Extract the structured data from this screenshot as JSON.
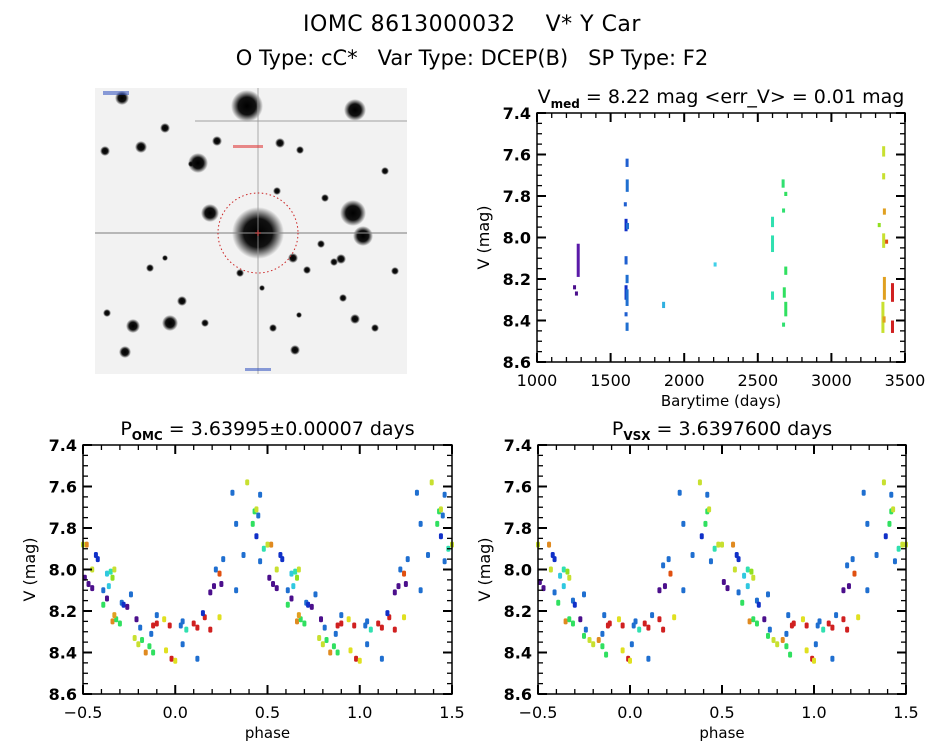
{
  "header": {
    "title_line1": "IOMC 8613000032    V* Y Car",
    "title_line2": "O Type: cC*   Var Type: DCEP(B)   SP Type: F2"
  },
  "thumbnail": {
    "description": "Sky image cutout centered on target with dotted red aperture circle",
    "aperture_color": "#cc2222"
  },
  "chart_data": [
    {
      "id": "lightcurve",
      "type": "scatter",
      "title_main": "V",
      "title_sub": "med",
      "title_rest": " = 8.22 mag <err_V> = 0.01 mag",
      "xlabel": "Barytime (days)",
      "ylabel": "V (mag)",
      "xlim": [
        1000,
        3500
      ],
      "ylim": [
        7.4,
        8.6
      ],
      "y_inverted": true,
      "xticks": [
        1000,
        1500,
        2000,
        2500,
        3000,
        3500
      ],
      "xtick_labels": [
        "1000",
        "1500",
        "2000",
        "2500",
        "3000",
        "3500"
      ],
      "yticks": [
        7.4,
        7.6,
        7.8,
        8.0,
        8.2,
        8.4,
        8.6
      ],
      "ytick_labels": [
        "7.4",
        "7.6",
        "7.8",
        "8.0",
        "8.2",
        "8.4",
        "8.6"
      ],
      "grid": false,
      "segments": [
        {
          "x": 1280,
          "y0": 8.03,
          "y1": 8.19,
          "color": "#5a1aa8"
        },
        {
          "x": 1255,
          "y0": 8.23,
          "y1": 8.25,
          "color": "#4b0f8c"
        },
        {
          "x": 1268,
          "y0": 8.26,
          "y1": 8.28,
          "color": "#4b0f8c"
        },
        {
          "x": 1612,
          "y0": 7.62,
          "y1": 7.66,
          "color": "#1f5fd0"
        },
        {
          "x": 1613,
          "y0": 7.72,
          "y1": 7.78,
          "color": "#1f6fd0"
        },
        {
          "x": 1600,
          "y0": 7.83,
          "y1": 7.85,
          "color": "#1f5fd0"
        },
        {
          "x": 1605,
          "y0": 7.91,
          "y1": 7.97,
          "color": "#1030c8"
        },
        {
          "x": 1615,
          "y0": 7.93,
          "y1": 7.96,
          "color": "#1f6fd0"
        },
        {
          "x": 1605,
          "y0": 8.09,
          "y1": 8.13,
          "color": "#1f5fd0"
        },
        {
          "x": 1612,
          "y0": 8.18,
          "y1": 8.22,
          "color": "#1f6fd0"
        },
        {
          "x": 1605,
          "y0": 8.23,
          "y1": 8.3,
          "color": "#1030c8"
        },
        {
          "x": 1612,
          "y0": 8.25,
          "y1": 8.33,
          "color": "#1f6fd0"
        },
        {
          "x": 1605,
          "y0": 8.36,
          "y1": 8.38,
          "color": "#1f5fd0"
        },
        {
          "x": 1612,
          "y0": 8.41,
          "y1": 8.45,
          "color": "#1f6fd0"
        },
        {
          "x": 1860,
          "y0": 8.31,
          "y1": 8.34,
          "color": "#30b0e0"
        },
        {
          "x": 2210,
          "y0": 8.12,
          "y1": 8.14,
          "color": "#40d0e8"
        },
        {
          "x": 2600,
          "y0": 7.9,
          "y1": 7.95,
          "color": "#30e0b0"
        },
        {
          "x": 2600,
          "y0": 7.99,
          "y1": 8.07,
          "color": "#30e0b0"
        },
        {
          "x": 2600,
          "y0": 8.26,
          "y1": 8.3,
          "color": "#30e0b0"
        },
        {
          "x": 2672,
          "y0": 7.72,
          "y1": 7.76,
          "color": "#30e070"
        },
        {
          "x": 2690,
          "y0": 7.78,
          "y1": 7.8,
          "color": "#30e060"
        },
        {
          "x": 2675,
          "y0": 7.86,
          "y1": 7.88,
          "color": "#30e070"
        },
        {
          "x": 2690,
          "y0": 8.14,
          "y1": 8.18,
          "color": "#30e060"
        },
        {
          "x": 2680,
          "y0": 8.24,
          "y1": 8.29,
          "color": "#30e060"
        },
        {
          "x": 2690,
          "y0": 8.31,
          "y1": 8.38,
          "color": "#30e060"
        },
        {
          "x": 2675,
          "y0": 8.41,
          "y1": 8.43,
          "color": "#30e070"
        },
        {
          "x": 3355,
          "y0": 7.56,
          "y1": 7.61,
          "color": "#c8e030"
        },
        {
          "x": 3355,
          "y0": 7.69,
          "y1": 7.72,
          "color": "#c8e030"
        },
        {
          "x": 3360,
          "y0": 7.86,
          "y1": 7.89,
          "color": "#e0a020"
        },
        {
          "x": 3325,
          "y0": 7.93,
          "y1": 7.95,
          "color": "#90e020"
        },
        {
          "x": 3355,
          "y0": 7.98,
          "y1": 8.05,
          "color": "#c8e030"
        },
        {
          "x": 3375,
          "y0": 8.01,
          "y1": 8.03,
          "color": "#e05010"
        },
        {
          "x": 3360,
          "y0": 8.19,
          "y1": 8.3,
          "color": "#e0a020"
        },
        {
          "x": 3415,
          "y0": 8.22,
          "y1": 8.31,
          "color": "#d02020"
        },
        {
          "x": 3350,
          "y0": 8.31,
          "y1": 8.46,
          "color": "#c8e030"
        },
        {
          "x": 3358,
          "y0": 8.38,
          "y1": 8.41,
          "color": "#e0a020"
        },
        {
          "x": 3415,
          "y0": 8.4,
          "y1": 8.46,
          "color": "#d02020"
        }
      ]
    },
    {
      "id": "phase_omc",
      "type": "scatter",
      "title_main": "P",
      "title_sub": "OMC",
      "title_rest": " = 3.63995±0.00007 days",
      "xlabel": "phase",
      "ylabel": "V (mag)",
      "xlim": [
        -0.5,
        1.5
      ],
      "ylim": [
        7.4,
        8.6
      ],
      "y_inverted": true,
      "xticks": [
        -0.5,
        0.0,
        0.5,
        1.0,
        1.5
      ],
      "xtick_labels": [
        "−0.5",
        "0.0",
        "0.5",
        "1.0",
        "1.5"
      ],
      "yticks": [
        7.4,
        7.6,
        7.8,
        8.0,
        8.2,
        8.4,
        8.6
      ],
      "ytick_labels": [
        "7.4",
        "7.6",
        "7.8",
        "8.0",
        "8.2",
        "8.4",
        "8.6"
      ],
      "grid": false,
      "period_repeat": 1.0,
      "points": [
        [
          -0.48,
          7.88,
          "#e08a20"
        ],
        [
          -0.43,
          7.93,
          "#1030c8"
        ],
        [
          -0.42,
          7.95,
          "#1030c8"
        ],
        [
          -0.45,
          8.0,
          "#c8e030"
        ],
        [
          -0.49,
          8.04,
          "#4b0f8c"
        ],
        [
          -0.47,
          8.07,
          "#4b0f8c"
        ],
        [
          -0.45,
          8.09,
          "#4b0f8c"
        ],
        [
          -0.37,
          8.02,
          "#30c8e0"
        ],
        [
          -0.35,
          8.01,
          "#30e0b0"
        ],
        [
          -0.33,
          8.0,
          "#c8e030"
        ],
        [
          -0.34,
          8.04,
          "#90e020"
        ],
        [
          -0.36,
          8.08,
          "#30c8e0"
        ],
        [
          -0.39,
          8.1,
          "#1f6fd0"
        ],
        [
          -0.37,
          8.14,
          "#4b0f8c"
        ],
        [
          -0.39,
          8.17,
          "#30e060"
        ],
        [
          -0.29,
          8.16,
          "#1f6fd0"
        ],
        [
          -0.28,
          8.17,
          "#1030c8"
        ],
        [
          -0.26,
          8.18,
          "#4b0f8c"
        ],
        [
          -0.24,
          8.12,
          "#1f6fd0"
        ],
        [
          -0.34,
          8.25,
          "#e08a20"
        ],
        [
          -0.32,
          8.24,
          "#30e060"
        ],
        [
          -0.3,
          8.26,
          "#30e060"
        ],
        [
          -0.33,
          8.22,
          "#e0a020"
        ],
        [
          -0.21,
          8.24,
          "#4b0f8c"
        ],
        [
          -0.19,
          8.28,
          "#1f6fd0"
        ],
        [
          -0.22,
          8.33,
          "#c8e030"
        ],
        [
          -0.2,
          8.36,
          "#c8e030"
        ],
        [
          -0.18,
          8.34,
          "#30e060"
        ],
        [
          -0.16,
          8.4,
          "#e08a20"
        ],
        [
          -0.14,
          8.37,
          "#30e060"
        ],
        [
          -0.12,
          8.4,
          "#30e060"
        ],
        [
          -0.13,
          8.31,
          "#1f6fd0"
        ],
        [
          -0.12,
          8.27,
          "#d02020"
        ],
        [
          -0.1,
          8.26,
          "#d02020"
        ],
        [
          -0.1,
          8.22,
          "#1f6fd0"
        ],
        [
          -0.06,
          8.24,
          "#e0e020"
        ],
        [
          -0.03,
          8.27,
          "#d02020"
        ],
        [
          -0.05,
          8.39,
          "#e0e020"
        ],
        [
          -0.02,
          8.43,
          "#d02020"
        ],
        [
          0.0,
          8.44,
          "#e0e020"
        ],
        [
          0.03,
          8.27,
          "#1f6fd0"
        ],
        [
          0.04,
          8.25,
          "#1f6fd0"
        ],
        [
          0.06,
          8.29,
          "#30e0b0"
        ],
        [
          0.04,
          8.36,
          "#1f6fd0"
        ],
        [
          0.1,
          8.26,
          "#d02020"
        ],
        [
          0.12,
          8.28,
          "#d02020"
        ],
        [
          0.16,
          8.23,
          "#d02020"
        ],
        [
          0.19,
          8.29,
          "#d02020"
        ],
        [
          0.12,
          8.43,
          "#1f6fd0"
        ],
        [
          0.15,
          8.21,
          "#1030c8"
        ],
        [
          0.24,
          8.23,
          "#e0e020"
        ],
        [
          0.19,
          8.11,
          "#4b0f8c"
        ],
        [
          0.21,
          8.08,
          "#4b0f8c"
        ],
        [
          0.22,
          8.0,
          "#1f6fd0"
        ],
        [
          0.24,
          8.02,
          "#e05010"
        ],
        [
          0.25,
          8.07,
          "#4b0f8c"
        ],
        [
          0.26,
          7.95,
          "#1f6fd0"
        ],
        [
          0.33,
          8.1,
          "#1f6fd0"
        ],
        [
          0.31,
          7.63,
          "#1f6fd0"
        ],
        [
          0.33,
          7.78,
          "#1f6fd0"
        ],
        [
          0.37,
          7.93,
          "#1f6fd0"
        ],
        [
          0.39,
          7.58,
          "#c8e030"
        ],
        [
          0.46,
          7.64,
          "#1f6fd0"
        ],
        [
          0.43,
          7.72,
          "#30e060"
        ],
        [
          0.44,
          7.71,
          "#c8e030"
        ],
        [
          0.42,
          7.78,
          "#30e060"
        ],
        [
          0.45,
          7.74,
          "#1f6fd0"
        ],
        [
          0.44,
          7.84,
          "#1030c8"
        ],
        [
          0.48,
          7.9,
          "#30e0b0"
        ],
        [
          0.5,
          7.88,
          "#c8e030"
        ],
        [
          0.46,
          7.96,
          "#1f6fd0"
        ]
      ]
    },
    {
      "id": "phase_vsx",
      "type": "scatter",
      "title_main": "P",
      "title_sub": "VSX",
      "title_rest": " = 3.6397600 days",
      "xlabel": "phase",
      "ylabel": "V (mag)",
      "xlim": [
        -0.5,
        1.5
      ],
      "ylim": [
        7.4,
        8.6
      ],
      "y_inverted": true,
      "xticks": [
        -0.5,
        0.0,
        0.5,
        1.0,
        1.5
      ],
      "xtick_labels": [
        "−0.5",
        "0.0",
        "0.5",
        "1.0",
        "1.5"
      ],
      "yticks": [
        7.4,
        7.6,
        7.8,
        8.0,
        8.2,
        8.4,
        8.6
      ],
      "ytick_labels": [
        "7.4",
        "7.6",
        "7.8",
        "8.0",
        "8.2",
        "8.4",
        "8.6"
      ],
      "grid": false,
      "period_repeat": 1.0,
      "points": [
        [
          -0.5,
          7.88,
          "#c8e030"
        ],
        [
          -0.44,
          7.88,
          "#e08a20"
        ],
        [
          -0.42,
          7.93,
          "#1030c8"
        ],
        [
          -0.41,
          7.95,
          "#1030c8"
        ],
        [
          -0.43,
          8.0,
          "#c8e030"
        ],
        [
          -0.49,
          8.06,
          "#4b0f8c"
        ],
        [
          -0.47,
          8.09,
          "#4b0f8c"
        ],
        [
          -0.36,
          8.0,
          "#30e0b0"
        ],
        [
          -0.34,
          8.01,
          "#90e020"
        ],
        [
          -0.33,
          8.04,
          "#c8e030"
        ],
        [
          -0.38,
          8.03,
          "#30c8e0"
        ],
        [
          -0.36,
          8.08,
          "#30c8e0"
        ],
        [
          -0.41,
          8.11,
          "#1f6fd0"
        ],
        [
          -0.39,
          8.16,
          "#30e060"
        ],
        [
          -0.31,
          8.15,
          "#1f6fd0"
        ],
        [
          -0.3,
          8.17,
          "#1030c8"
        ],
        [
          -0.25,
          8.12,
          "#1f6fd0"
        ],
        [
          -0.35,
          8.25,
          "#e08a20"
        ],
        [
          -0.33,
          8.24,
          "#30e060"
        ],
        [
          -0.31,
          8.26,
          "#30e060"
        ],
        [
          -0.27,
          8.24,
          "#4b0f8c"
        ],
        [
          -0.24,
          8.29,
          "#1f6fd0"
        ],
        [
          -0.25,
          8.32,
          "#30e060"
        ],
        [
          -0.22,
          8.34,
          "#c8e030"
        ],
        [
          -0.2,
          8.36,
          "#c8e030"
        ],
        [
          -0.17,
          8.34,
          "#e08a20"
        ],
        [
          -0.15,
          8.37,
          "#30e060"
        ],
        [
          -0.13,
          8.41,
          "#30e060"
        ],
        [
          -0.15,
          8.31,
          "#1f6fd0"
        ],
        [
          -0.12,
          8.27,
          "#d02020"
        ],
        [
          -0.11,
          8.26,
          "#d02020"
        ],
        [
          -0.14,
          8.22,
          "#1f6fd0"
        ],
        [
          -0.06,
          8.24,
          "#e0e020"
        ],
        [
          -0.04,
          8.27,
          "#d02020"
        ],
        [
          -0.04,
          8.39,
          "#e0e020"
        ],
        [
          -0.01,
          8.43,
          "#d02020"
        ],
        [
          0.0,
          8.44,
          "#e0e020"
        ],
        [
          0.02,
          8.27,
          "#1f6fd0"
        ],
        [
          0.03,
          8.25,
          "#1f6fd0"
        ],
        [
          0.05,
          8.29,
          "#30e0b0"
        ],
        [
          0.01,
          8.36,
          "#1f6fd0"
        ],
        [
          0.08,
          8.26,
          "#d02020"
        ],
        [
          0.1,
          8.28,
          "#d02020"
        ],
        [
          0.12,
          8.22,
          "#1f6fd0"
        ],
        [
          0.16,
          8.24,
          "#d02020"
        ],
        [
          0.18,
          8.29,
          "#d02020"
        ],
        [
          0.1,
          8.43,
          "#1f6fd0"
        ],
        [
          0.24,
          8.23,
          "#e0e020"
        ],
        [
          0.16,
          8.1,
          "#4b0f8c"
        ],
        [
          0.19,
          8.08,
          "#4b0f8c"
        ],
        [
          0.18,
          7.98,
          "#1f6fd0"
        ],
        [
          0.22,
          8.02,
          "#e05010"
        ],
        [
          0.21,
          7.95,
          "#1f6fd0"
        ],
        [
          0.29,
          8.1,
          "#1f6fd0"
        ],
        [
          0.27,
          7.63,
          "#1f6fd0"
        ],
        [
          0.29,
          7.78,
          "#1f6fd0"
        ],
        [
          0.34,
          7.93,
          "#1f6fd0"
        ],
        [
          0.38,
          7.58,
          "#c8e030"
        ],
        [
          0.42,
          7.64,
          "#1f6fd0"
        ],
        [
          0.42,
          7.72,
          "#30e060"
        ],
        [
          0.43,
          7.71,
          "#c8e030"
        ],
        [
          0.41,
          7.78,
          "#30e060"
        ],
        [
          0.39,
          7.84,
          "#1030c8"
        ],
        [
          0.46,
          7.9,
          "#30e0b0"
        ],
        [
          0.48,
          7.88,
          "#c8e030"
        ],
        [
          0.44,
          7.96,
          "#1f6fd0"
        ]
      ]
    }
  ]
}
